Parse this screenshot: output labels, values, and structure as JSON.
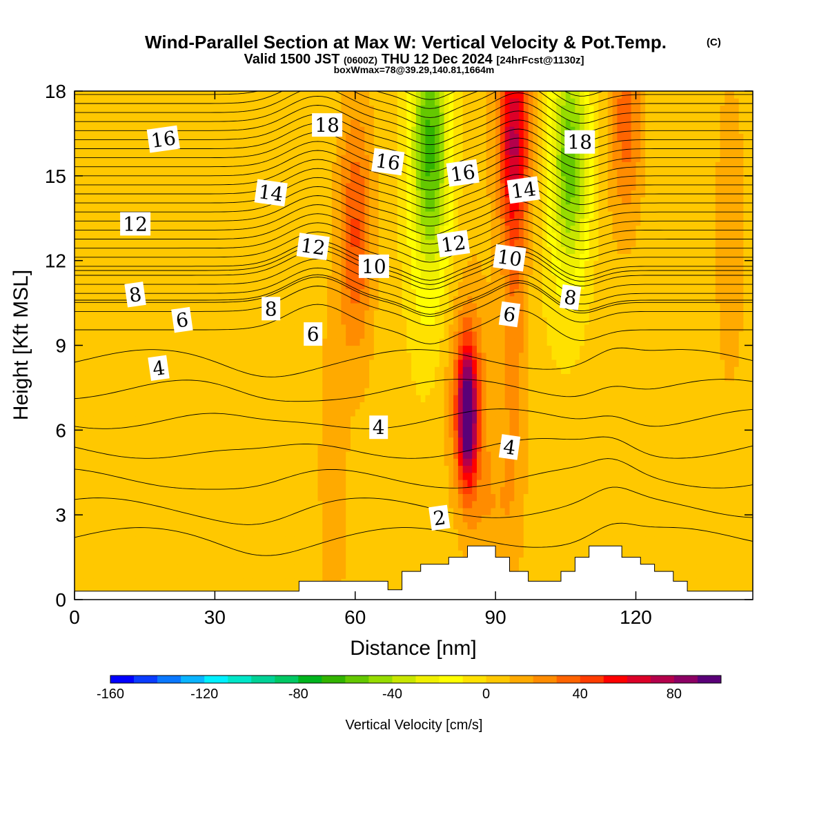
{
  "header": {
    "title": "Wind-Parallel Section at Max W: Vertical Velocity & Pot.Temp.",
    "title_mark": "(C)",
    "line2_a": "Valid 1500 JST",
    "line2_b": "(0600Z)",
    "line2_c": "THU 12 Dec 2024",
    "line2_d": "[24hrFcst@1130z]",
    "line3": "boxWmax=78@39.29,140.81,1664m"
  },
  "chart_data": {
    "type": "heatmap",
    "title": "Wind-Parallel Section at Max W: Vertical Velocity & Pot.Temp.",
    "xlabel": "Distance [nm]",
    "ylabel": "Height [Kft MSL]",
    "xlim": [
      0,
      145
    ],
    "ylim": [
      0,
      18
    ],
    "x_ticks": [
      0,
      30,
      60,
      90,
      120
    ],
    "y_ticks": [
      0,
      3,
      6,
      9,
      12,
      15,
      18
    ],
    "x_tick_labels": [
      "0",
      "30",
      "60",
      "90",
      "120"
    ],
    "y_tick_labels": [
      "0",
      "3",
      "6",
      "9",
      "12",
      "15",
      "18"
    ],
    "colorbar": {
      "label": "Vertical Velocity [cm/s]",
      "min": -160,
      "max": 90,
      "step": 10,
      "tick_values": [
        -160,
        -120,
        -80,
        -40,
        0,
        40,
        80
      ],
      "tick_labels": [
        "-160",
        "-120",
        "-80",
        "-40",
        "0",
        "40",
        "80"
      ],
      "colors": [
        "#0000ff",
        "#0a3cff",
        "#0a78ff",
        "#0ab4ff",
        "#00f0ff",
        "#00e6c8",
        "#00d296",
        "#00c864",
        "#00b41e",
        "#32b400",
        "#64c800",
        "#96dc00",
        "#c8e600",
        "#f0f000",
        "#ffff00",
        "#ffe100",
        "#ffc800",
        "#ffaa00",
        "#ff8c00",
        "#ff6400",
        "#ff3c00",
        "#ff0000",
        "#dc0028",
        "#b4004b",
        "#8c0064",
        "#5a0078"
      ]
    },
    "theta_contour_labels": [
      {
        "x": 19,
        "y": 16.3,
        "text": "16"
      },
      {
        "x": 54,
        "y": 16.8,
        "text": "18"
      },
      {
        "x": 67,
        "y": 15.5,
        "text": "16"
      },
      {
        "x": 83,
        "y": 15.1,
        "text": "16"
      },
      {
        "x": 108,
        "y": 16.2,
        "text": "18"
      },
      {
        "x": 42,
        "y": 14.4,
        "text": "14"
      },
      {
        "x": 96,
        "y": 14.5,
        "text": "14"
      },
      {
        "x": 13,
        "y": 13.3,
        "text": "12"
      },
      {
        "x": 51,
        "y": 12.5,
        "text": "12"
      },
      {
        "x": 81,
        "y": 12.6,
        "text": "12"
      },
      {
        "x": 64,
        "y": 11.8,
        "text": "10"
      },
      {
        "x": 93,
        "y": 12.1,
        "text": "10"
      },
      {
        "x": 13,
        "y": 10.8,
        "text": "8"
      },
      {
        "x": 42,
        "y": 10.3,
        "text": "8"
      },
      {
        "x": 106,
        "y": 10.7,
        "text": "8"
      },
      {
        "x": 23,
        "y": 9.9,
        "text": "6"
      },
      {
        "x": 51,
        "y": 9.4,
        "text": "6"
      },
      {
        "x": 93,
        "y": 10.1,
        "text": "6"
      },
      {
        "x": 18,
        "y": 8.2,
        "text": "4"
      },
      {
        "x": 65,
        "y": 6.1,
        "text": "4"
      },
      {
        "x": 93,
        "y": 5.4,
        "text": "4"
      },
      {
        "x": 78,
        "y": 2.9,
        "text": "2"
      }
    ],
    "terrain_steps_kft": [
      {
        "x0": 0,
        "x1": 48,
        "h": 0.3
      },
      {
        "x0": 48,
        "x1": 67,
        "h": 0.65
      },
      {
        "x0": 67,
        "x1": 70,
        "h": 0.35
      },
      {
        "x0": 70,
        "x1": 74,
        "h": 1.0
      },
      {
        "x0": 74,
        "x1": 80,
        "h": 1.25
      },
      {
        "x0": 80,
        "x1": 84,
        "h": 1.5
      },
      {
        "x0": 84,
        "x1": 90,
        "h": 1.9
      },
      {
        "x0": 90,
        "x1": 93,
        "h": 1.5
      },
      {
        "x0": 93,
        "x1": 97,
        "h": 1.0
      },
      {
        "x0": 97,
        "x1": 104,
        "h": 0.65
      },
      {
        "x0": 104,
        "x1": 107,
        "h": 1.0
      },
      {
        "x0": 107,
        "x1": 110,
        "h": 1.5
      },
      {
        "x0": 110,
        "x1": 117,
        "h": 1.9
      },
      {
        "x0": 117,
        "x1": 121,
        "h": 1.5
      },
      {
        "x0": 121,
        "x1": 124,
        "h": 1.25
      },
      {
        "x0": 124,
        "x1": 128,
        "h": 1.0
      },
      {
        "x0": 128,
        "x1": 131,
        "h": 0.65
      },
      {
        "x0": 131,
        "x1": 145,
        "h": 0.3
      }
    ],
    "vertical_velocity_features": [
      {
        "x": 84,
        "y": 6.5,
        "sx": 1.4,
        "sy": 1.6,
        "w": 85
      },
      {
        "x": 84,
        "y": 7.2,
        "sx": 3.0,
        "sy": 2.6,
        "w": 30
      },
      {
        "x": 94,
        "y": 10.0,
        "sx": 2.0,
        "sy": 4.5,
        "w": 22
      },
      {
        "x": 94,
        "y": 16.5,
        "sx": 2.5,
        "sy": 2.5,
        "w": 60
      },
      {
        "x": 60,
        "y": 13.0,
        "sx": 2.5,
        "sy": 3.0,
        "w": 35
      },
      {
        "x": 76,
        "y": 16.0,
        "sx": 3.0,
        "sy": 3.5,
        "w": -65
      },
      {
        "x": 106,
        "y": 15.5,
        "sx": 3.0,
        "sy": 3.0,
        "w": -60
      },
      {
        "x": 118,
        "y": 17.0,
        "sx": 2.5,
        "sy": 2.5,
        "w": 30
      },
      {
        "x": 90,
        "y": 3.0,
        "sx": 4.0,
        "sy": 2.0,
        "w": 12
      },
      {
        "x": 55,
        "y": 4.5,
        "sx": 2.0,
        "sy": 4.0,
        "w": 15
      },
      {
        "x": 140,
        "y": 13.0,
        "sx": 2.5,
        "sy": 4.0,
        "w": 10
      }
    ]
  }
}
